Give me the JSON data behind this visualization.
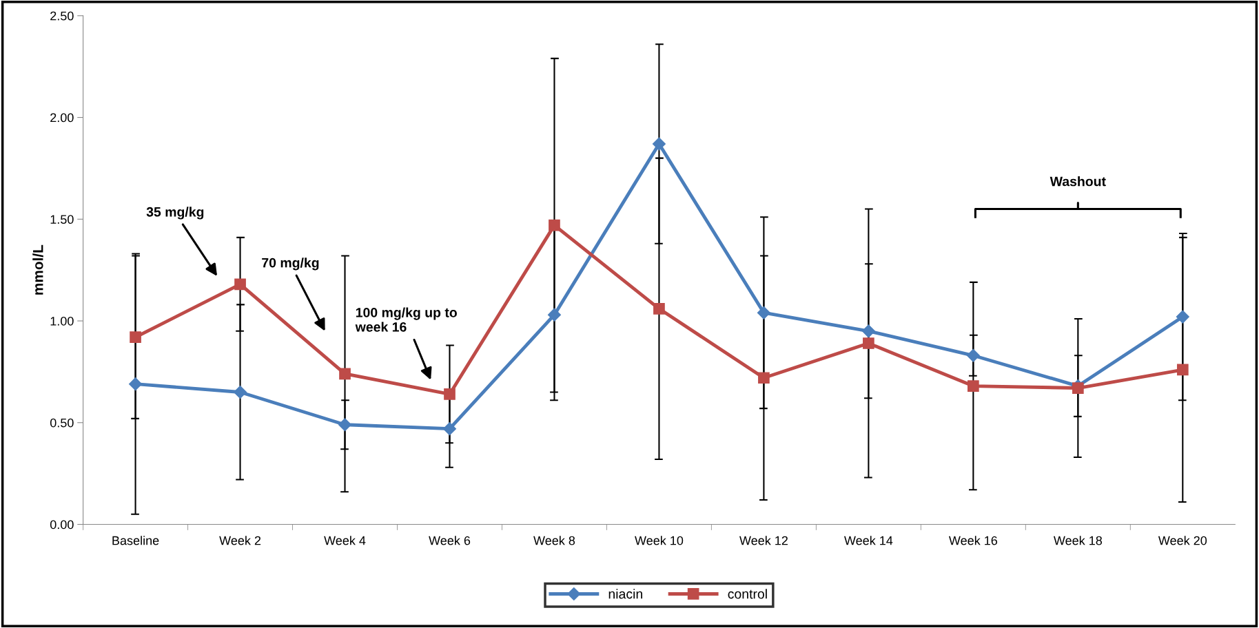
{
  "chart_data": {
    "type": "line",
    "categories": [
      "Baseline",
      "Week 2",
      "Week 4",
      "Week 6",
      "Week 8",
      "Week 10",
      "Week 12",
      "Week 14",
      "Week 16",
      "Week 18",
      "Week 20"
    ],
    "ylabel": "mmol/L",
    "ylim": [
      0,
      2.5
    ],
    "yticks": [
      {
        "value": 0,
        "label": "0.00"
      },
      {
        "value": 0.5,
        "label": "0.50"
      },
      {
        "value": 1.0,
        "label": "1.00"
      },
      {
        "value": 1.5,
        "label": "1.50"
      },
      {
        "value": 2.0,
        "label": "2.00"
      },
      {
        "value": 2.5,
        "label": "2.50"
      }
    ],
    "series": [
      {
        "name": "niacin",
        "color": "#4a7ebb",
        "marker": "diamond",
        "values": [
          0.69,
          0.65,
          0.49,
          0.47,
          1.03,
          1.87,
          1.04,
          0.95,
          0.83,
          0.68,
          1.02
        ],
        "errors": [
          0.64,
          0.43,
          0.12,
          0.19,
          0.42,
          0.49,
          0.47,
          0.33,
          0.1,
          0.15,
          0.41
        ]
      },
      {
        "name": "control",
        "color": "#be4b48",
        "marker": "square",
        "values": [
          0.92,
          1.18,
          0.74,
          0.64,
          1.47,
          1.06,
          0.72,
          0.89,
          0.68,
          0.67,
          0.76
        ],
        "errors": [
          0.4,
          0.23,
          0.58,
          0.24,
          0.82,
          0.74,
          0.6,
          0.66,
          0.51,
          0.34,
          0.65
        ]
      }
    ],
    "annotations": [
      "35 mg/kg",
      "70 mg/kg",
      "100 mg/kg up to\nweek 16",
      "Washout"
    ],
    "grid": false,
    "legend": "bottom",
    "line_style": "solid"
  }
}
